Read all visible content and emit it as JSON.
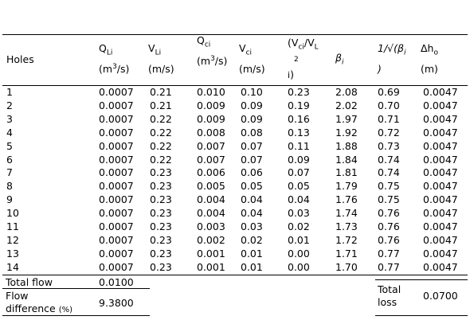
{
  "header": {
    "holes": "Holes",
    "qli": {
      "base": "Q",
      "sub": "Li",
      "unit_pre": "(m",
      "unit_sup": "3",
      "unit_post": "/s)"
    },
    "vli": {
      "base": "V",
      "sub": "Li",
      "unit": "(m/s)"
    },
    "qci": {
      "base": "Q",
      "sub": "ci",
      "unit_pre": "(m",
      "unit_sup": "3",
      "unit_post": "/s)"
    },
    "vci": {
      "base": "V",
      "sub": "ci",
      "unit": "(m/s)"
    },
    "ratio": {
      "open": "(V",
      "sub1": "ci",
      "mid": "/V",
      "sub2": "L",
      "line2_sub": "i",
      "close": ")",
      "sup": "2"
    },
    "beta": {
      "base": "β",
      "sub": "i"
    },
    "inv": {
      "line1": "1/√(β",
      "sub": "i",
      "line2": ")"
    },
    "dh": {
      "base": "Δh",
      "sub": "o",
      "unit": "(m)"
    }
  },
  "rows": [
    [
      "1",
      "0.0007",
      "0.21",
      "0.010",
      "0.10",
      "0.23",
      "2.08",
      "0.69",
      "0.0047"
    ],
    [
      "2",
      "0.0007",
      "0.21",
      "0.009",
      "0.09",
      "0.19",
      "2.02",
      "0.70",
      "0.0047"
    ],
    [
      "3",
      "0.0007",
      "0.22",
      "0.009",
      "0.09",
      "0.16",
      "1.97",
      "0.71",
      "0.0047"
    ],
    [
      "4",
      "0.0007",
      "0.22",
      "0.008",
      "0.08",
      "0.13",
      "1.92",
      "0.72",
      "0.0047"
    ],
    [
      "5",
      "0.0007",
      "0.22",
      "0.007",
      "0.07",
      "0.11",
      "1.88",
      "0.73",
      "0.0047"
    ],
    [
      "6",
      "0.0007",
      "0.22",
      "0.007",
      "0.07",
      "0.09",
      "1.84",
      "0.74",
      "0.0047"
    ],
    [
      "7",
      "0.0007",
      "0.23",
      "0.006",
      "0.06",
      "0.07",
      "1.81",
      "0.74",
      "0.0047"
    ],
    [
      "8",
      "0.0007",
      "0.23",
      "0.005",
      "0.05",
      "0.05",
      "1.79",
      "0.75",
      "0.0047"
    ],
    [
      "9",
      "0.0007",
      "0.23",
      "0.004",
      "0.04",
      "0.04",
      "1.76",
      "0.75",
      "0.0047"
    ],
    [
      "10",
      "0.0007",
      "0.23",
      "0.004",
      "0.04",
      "0.03",
      "1.74",
      "0.76",
      "0.0047"
    ],
    [
      "11",
      "0.0007",
      "0.23",
      "0.003",
      "0.03",
      "0.02",
      "1.73",
      "0.76",
      "0.0047"
    ],
    [
      "12",
      "0.0007",
      "0.23",
      "0.002",
      "0.02",
      "0.01",
      "1.72",
      "0.76",
      "0.0047"
    ],
    [
      "13",
      "0.0007",
      "0.23",
      "0.001",
      "0.01",
      "0.00",
      "1.71",
      "0.77",
      "0.0047"
    ],
    [
      "14",
      "0.0007",
      "0.23",
      "0.001",
      "0.01",
      "0.00",
      "1.70",
      "0.77",
      "0.0047"
    ]
  ],
  "footer": {
    "total_flow_label": "Total flow",
    "total_flow_value": "0.0100",
    "flow_diff_label_1": "Flow",
    "flow_diff_label_2": "difference",
    "flow_diff_label_unit": "(%)",
    "flow_diff_value": "9.3800",
    "total_loss_label_1": "Total",
    "total_loss_label_2": "loss",
    "total_loss_value": "0.0700"
  }
}
